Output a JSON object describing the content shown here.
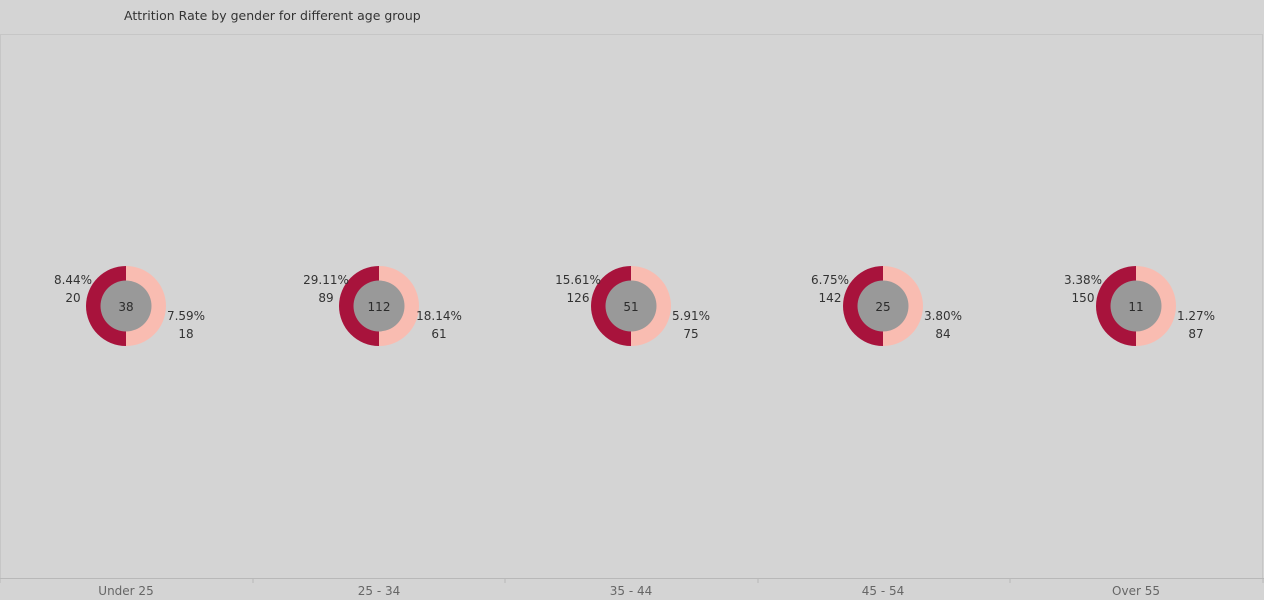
{
  "chart_data": {
    "type": "pie",
    "title": "Attrition Rate by gender for different age group",
    "categories": [
      "Under 25",
      "25 - 34",
      "35 - 44",
      "45 - 54",
      "Over 55"
    ],
    "center_values": [
      38,
      112,
      51,
      25,
      11
    ],
    "series": [
      {
        "percent_labels": [
          "8.44%",
          "29.11%",
          "15.61%",
          "6.75%",
          "3.38%"
        ],
        "counts": [
          20,
          89,
          126,
          142,
          150
        ],
        "color": "#a8133c"
      },
      {
        "percent_labels": [
          "7.59%",
          "18.14%",
          "5.91%",
          "3.80%",
          "1.27%"
        ],
        "counts": [
          18,
          61,
          75,
          84,
          87
        ],
        "color": "#f9bcb1"
      }
    ],
    "center_color": "#999999",
    "legend": "none",
    "grid": false
  }
}
